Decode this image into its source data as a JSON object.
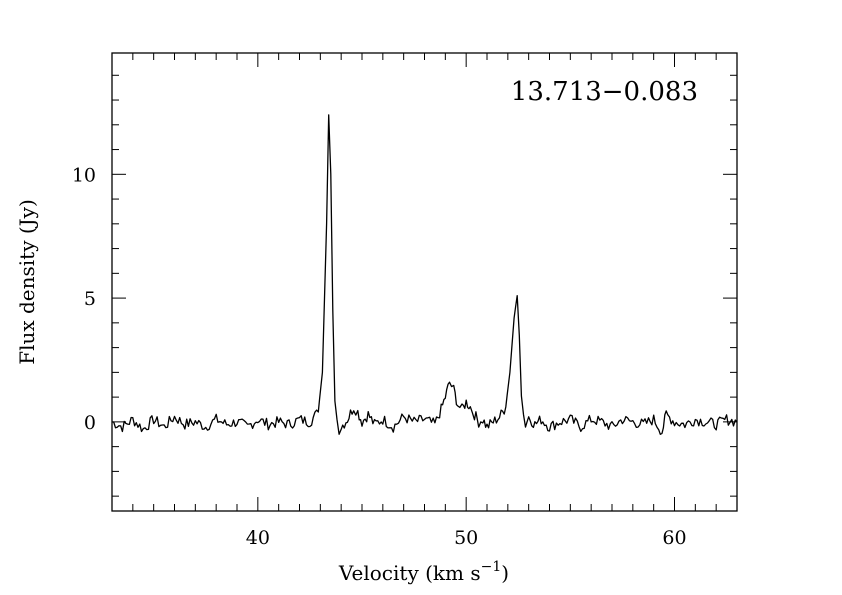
{
  "chart_data": {
    "type": "line",
    "title": "",
    "annotation": "13.713−0.083",
    "xlabel": "Velocity (km s",
    "xlabel_sup": "−1",
    "xlabel_tail": ")",
    "ylabel": "Flux density (Jy)",
    "xlim": [
      33,
      63
    ],
    "ylim": [
      -3.6,
      14.9
    ],
    "xticks": [
      40,
      50,
      60
    ],
    "xtick_labels": [
      "40",
      "50",
      "60"
    ],
    "yticks": [
      0,
      5,
      10
    ],
    "ytick_labels": [
      "0",
      "5",
      "10"
    ],
    "x_minor_step": 1,
    "y_minor_step": 1,
    "grid": false,
    "series": [
      {
        "x": [
          33.0,
          33.5,
          34.0,
          34.5,
          35.0,
          35.5,
          36.0,
          36.5,
          37.0,
          37.5,
          38.0,
          38.5,
          39.0,
          39.5,
          40.0,
          40.5,
          41.0,
          41.5,
          42.0,
          42.5,
          42.9,
          43.1,
          43.3,
          43.4,
          43.5,
          43.6,
          43.7,
          43.8,
          43.9,
          44.0,
          44.3,
          44.6,
          44.8,
          45.0,
          45.3,
          45.6,
          46.0,
          46.5,
          47.0,
          47.5,
          48.0,
          48.5,
          48.8,
          49.0,
          49.2,
          49.4,
          49.6,
          49.8,
          50.0,
          50.2,
          50.4,
          50.6,
          50.8,
          51.0,
          51.3,
          51.6,
          51.9,
          52.1,
          52.3,
          52.45,
          52.55,
          52.65,
          52.75,
          52.85,
          53.0,
          53.3,
          53.6,
          54.0,
          54.5,
          55.0,
          55.5,
          56.0,
          56.5,
          57.0,
          57.5,
          58.0,
          58.5,
          59.0,
          59.4,
          59.6,
          60.0,
          60.5,
          61.0,
          61.5,
          62.0,
          62.5,
          63.0
        ],
        "y": [
          0.0,
          -0.2,
          0.1,
          -0.3,
          0.1,
          -0.2,
          0.2,
          -0.1,
          0.0,
          -0.2,
          0.1,
          -0.1,
          0.0,
          -0.2,
          0.1,
          -0.1,
          0.0,
          -0.1,
          0.1,
          0.0,
          0.4,
          2.0,
          8.0,
          12.4,
          10.0,
          4.5,
          1.0,
          0.1,
          -0.3,
          -0.2,
          0.1,
          0.6,
          0.4,
          0.0,
          0.3,
          -0.1,
          0.1,
          -0.2,
          0.2,
          0.0,
          0.1,
          -0.1,
          0.5,
          1.0,
          1.6,
          1.3,
          0.7,
          0.5,
          0.8,
          0.6,
          0.3,
          0.0,
          0.1,
          -0.2,
          0.0,
          0.2,
          0.6,
          2.0,
          4.2,
          5.1,
          3.5,
          1.2,
          0.3,
          -0.1,
          0.2,
          -0.1,
          0.1,
          -0.2,
          0.0,
          0.1,
          -0.2,
          0.1,
          0.0,
          -0.2,
          0.1,
          0.0,
          -0.1,
          0.1,
          -0.4,
          0.3,
          0.0,
          -0.1,
          0.1,
          0.0,
          -0.1,
          0.1,
          0.0
        ]
      }
    ]
  }
}
